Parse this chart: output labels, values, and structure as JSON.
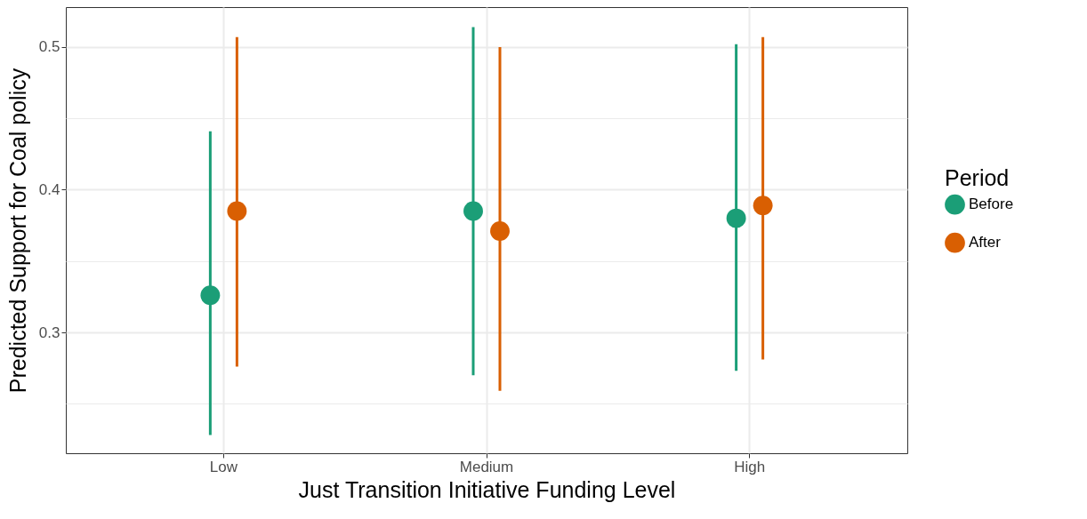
{
  "chart_data": {
    "type": "scatter",
    "xlabel": "Just Transition Initiative Funding Level",
    "ylabel": "Predicted Support for Coal policy",
    "legend_title": "Period",
    "categories": [
      "Low",
      "Medium",
      "High"
    ],
    "series": [
      {
        "name": "Before",
        "color": "#1b9e77",
        "values": [
          0.326,
          0.385,
          0.38
        ],
        "errors": [
          [
            0.228,
            0.441
          ],
          [
            0.27,
            0.514
          ],
          [
            0.273,
            0.502
          ]
        ]
      },
      {
        "name": "After",
        "color": "#d95f02",
        "values": [
          0.385,
          0.371,
          0.389
        ],
        "errors": [
          [
            0.276,
            0.507
          ],
          [
            0.259,
            0.5
          ],
          [
            0.281,
            0.507
          ]
        ]
      }
    ],
    "ylim": [
      0.2153,
      0.528
    ],
    "yticks": [
      {
        "value": 0.25,
        "label": null
      },
      0.3,
      {
        "value": 0.35,
        "label": null
      },
      0.4,
      {
        "value": 0.45,
        "label": null
      },
      0.5
    ],
    "grid": true,
    "legend": "right",
    "marker": "circle"
  }
}
